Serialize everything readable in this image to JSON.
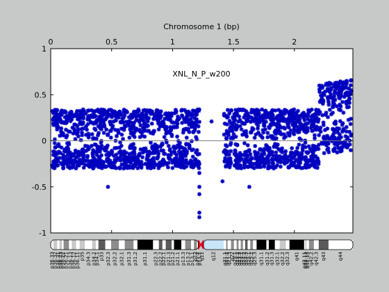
{
  "chart_data": {
    "type": "scatter",
    "title": "Chromosome 1 (bp)",
    "annotation": "XNL_N_P_w200",
    "x_axis": {
      "position": "top",
      "range": [
        0,
        2.48
      ],
      "ticks": [
        0,
        0.5,
        1,
        1.5,
        2
      ],
      "tick_labels": [
        "0",
        "0.5",
        "1",
        "1.5",
        "2"
      ]
    },
    "y_axis": {
      "range": [
        -1,
        1
      ],
      "ticks": [
        -1,
        -0.5,
        0,
        0.5,
        1
      ],
      "tick_labels": [
        "-1",
        "-0.5",
        "0",
        "0.5",
        "1"
      ]
    },
    "reference_line_y": 0,
    "grid": false,
    "marker": "asterisk",
    "colors": {
      "points": "#0000bf",
      "plot_background": "#ffffff",
      "figure_background": "#c6c9c8",
      "reference_line": "#7f7f7f",
      "centromere": "#e8001c",
      "heterochromatin": "#c8e4f7"
    },
    "series": [
      {
        "segments": [
          {
            "x_start": 0.0,
            "x_end": 1.22,
            "median": 0.0,
            "high": 0.34,
            "low": -0.3
          },
          {
            "x_start": 1.42,
            "x_end": 2.2,
            "median": 0.0,
            "high": 0.34,
            "low": -0.3
          },
          {
            "x_start": 2.2,
            "x_end": 2.48,
            "median": 0.25,
            "high": 0.62,
            "low": -0.15
          }
        ],
        "outliers": [
          {
            "x": 0.0,
            "y": -0.55
          },
          {
            "x": 0.0,
            "y": -0.7
          },
          {
            "x": 0.01,
            "y": -0.5
          },
          {
            "x": 0.0,
            "y": -0.65
          },
          {
            "x": 0.47,
            "y": -0.5
          },
          {
            "x": 1.22,
            "y": -0.25
          },
          {
            "x": 1.22,
            "y": -0.35
          },
          {
            "x": 1.22,
            "y": -0.5
          },
          {
            "x": 1.22,
            "y": -0.58
          },
          {
            "x": 1.22,
            "y": -0.78
          },
          {
            "x": 1.22,
            "y": -0.83
          },
          {
            "x": 1.32,
            "y": 0.21
          },
          {
            "x": 1.41,
            "y": -0.44
          },
          {
            "x": 1.63,
            "y": -0.5
          },
          {
            "x": 2.22,
            "y": 0.58
          },
          {
            "x": 2.43,
            "y": 0.63
          }
        ]
      }
    ],
    "ideogram": {
      "bands": [
        {
          "name": "p36.33",
          "start": 0.0,
          "end": 0.023,
          "stain": "gneg"
        },
        {
          "name": "p36.32",
          "start": 0.023,
          "end": 0.053,
          "stain": "gpos25"
        },
        {
          "name": "p36.31",
          "start": 0.053,
          "end": 0.072,
          "stain": "gneg"
        },
        {
          "name": "p36.23",
          "start": 0.072,
          "end": 0.092,
          "stain": "gpos25"
        },
        {
          "name": "p36.22",
          "start": 0.092,
          "end": 0.106,
          "stain": "gneg"
        },
        {
          "name": "p36.21",
          "start": 0.106,
          "end": 0.15,
          "stain": "gpos50"
        },
        {
          "name": "p36.13",
          "start": 0.15,
          "end": 0.173,
          "stain": "gneg"
        },
        {
          "name": "p36.12",
          "start": 0.173,
          "end": 0.208,
          "stain": "gpos25"
        },
        {
          "name": "p36.11",
          "start": 0.208,
          "end": 0.238,
          "stain": "gneg"
        },
        {
          "name": "p35",
          "start": 0.238,
          "end": 0.28,
          "stain": "gpos25"
        },
        {
          "name": "p34.3",
          "start": 0.28,
          "end": 0.341,
          "stain": "gneg"
        },
        {
          "name": "p34.2",
          "start": 0.341,
          "end": 0.37,
          "stain": "gpos25"
        },
        {
          "name": "p34.1",
          "start": 0.37,
          "end": 0.392,
          "stain": "gneg"
        },
        {
          "name": "p33",
          "start": 0.392,
          "end": 0.448,
          "stain": "gpos75"
        },
        {
          "name": "p32.3",
          "start": 0.448,
          "end": 0.496,
          "stain": "gneg"
        },
        {
          "name": "p32.2",
          "start": 0.496,
          "end": 0.56,
          "stain": "gpos50"
        },
        {
          "name": "p32.1",
          "start": 0.56,
          "end": 0.608,
          "stain": "gneg"
        },
        {
          "name": "p31.3",
          "start": 0.608,
          "end": 0.68,
          "stain": "gpos50"
        },
        {
          "name": "p31.2",
          "start": 0.68,
          "end": 0.712,
          "stain": "gneg"
        },
        {
          "name": "p31.1",
          "start": 0.712,
          "end": 0.84,
          "stain": "gpos100"
        },
        {
          "name": "p22.3",
          "start": 0.84,
          "end": 0.888,
          "stain": "gneg"
        },
        {
          "name": "p22.2",
          "start": 0.888,
          "end": 0.917,
          "stain": "gpos75"
        },
        {
          "name": "p22.1",
          "start": 0.917,
          "end": 0.944,
          "stain": "gneg"
        },
        {
          "name": "p21.3",
          "start": 0.944,
          "end": 0.992,
          "stain": "gpos75"
        },
        {
          "name": "p21.2",
          "start": 0.992,
          "end": 1.012,
          "stain": "gneg"
        },
        {
          "name": "p21.1",
          "start": 1.012,
          "end": 1.072,
          "stain": "gpos100"
        },
        {
          "name": "p13.3",
          "start": 1.072,
          "end": 1.104,
          "stain": "gneg"
        },
        {
          "name": "p13.2",
          "start": 1.104,
          "end": 1.152,
          "stain": "gpos50"
        },
        {
          "name": "p13.1",
          "start": 1.152,
          "end": 1.176,
          "stain": "gneg"
        },
        {
          "name": "p12",
          "start": 1.176,
          "end": 1.2,
          "stain": "gpos50"
        },
        {
          "name": "p11.2",
          "start": 1.2,
          "end": 1.212,
          "stain": "gneg"
        },
        {
          "name": "p11.1",
          "start": 1.212,
          "end": 1.232,
          "stain": "acen"
        },
        {
          "name": "q11",
          "start": 1.232,
          "end": 1.254,
          "stain": "acen"
        },
        {
          "name": "q12",
          "start": 1.254,
          "end": 1.42,
          "stain": "gvar"
        },
        {
          "name": "q21.1",
          "start": 1.42,
          "end": 1.44,
          "stain": "gneg"
        },
        {
          "name": "q21.2",
          "start": 1.44,
          "end": 1.452,
          "stain": "gpos50"
        },
        {
          "name": "q21.3",
          "start": 1.452,
          "end": 1.48,
          "stain": "gneg"
        },
        {
          "name": "q22",
          "start": 1.48,
          "end": 1.504,
          "stain": "gpos50"
        },
        {
          "name": "q23.1",
          "start": 1.504,
          "end": 1.526,
          "stain": "gneg"
        },
        {
          "name": "q23.2",
          "start": 1.526,
          "end": 1.542,
          "stain": "gpos50"
        },
        {
          "name": "q23.3",
          "start": 1.542,
          "end": 1.56,
          "stain": "gneg"
        },
        {
          "name": "q24.1",
          "start": 1.56,
          "end": 1.578,
          "stain": "gpos50"
        },
        {
          "name": "q24.2",
          "start": 1.578,
          "end": 1.596,
          "stain": "gneg"
        },
        {
          "name": "q24.3",
          "start": 1.596,
          "end": 1.616,
          "stain": "gpos75"
        },
        {
          "name": "q25.1",
          "start": 1.616,
          "end": 1.638,
          "stain": "gneg"
        },
        {
          "name": "q25.2",
          "start": 1.638,
          "end": 1.66,
          "stain": "gpos50"
        },
        {
          "name": "q25.3",
          "start": 1.66,
          "end": 1.69,
          "stain": "gneg"
        },
        {
          "name": "q31.1",
          "start": 1.69,
          "end": 1.77,
          "stain": "gpos100"
        },
        {
          "name": "q31.2",
          "start": 1.77,
          "end": 1.79,
          "stain": "gneg"
        },
        {
          "name": "q31.3",
          "start": 1.79,
          "end": 1.84,
          "stain": "gpos100"
        },
        {
          "name": "q32.1",
          "start": 1.84,
          "end": 1.88,
          "stain": "gneg"
        },
        {
          "name": "q32.2",
          "start": 1.88,
          "end": 1.93,
          "stain": "gpos25"
        },
        {
          "name": "q32.3",
          "start": 1.93,
          "end": 1.96,
          "stain": "gneg"
        },
        {
          "name": "q41",
          "start": 1.96,
          "end": 2.08,
          "stain": "gpos100"
        },
        {
          "name": "q42.11",
          "start": 2.08,
          "end": 2.09,
          "stain": "gneg"
        },
        {
          "name": "q42.12",
          "start": 2.09,
          "end": 2.1,
          "stain": "gpos25"
        },
        {
          "name": "q42.13",
          "start": 2.1,
          "end": 2.12,
          "stain": "gneg"
        },
        {
          "name": "q42.2",
          "start": 2.12,
          "end": 2.16,
          "stain": "gpos50"
        },
        {
          "name": "q42.3",
          "start": 2.16,
          "end": 2.2,
          "stain": "gneg"
        },
        {
          "name": "q43",
          "start": 2.2,
          "end": 2.28,
          "stain": "gpos75"
        },
        {
          "name": "q44",
          "start": 2.28,
          "end": 2.48,
          "stain": "gneg"
        }
      ],
      "label_stride": 1
    }
  }
}
